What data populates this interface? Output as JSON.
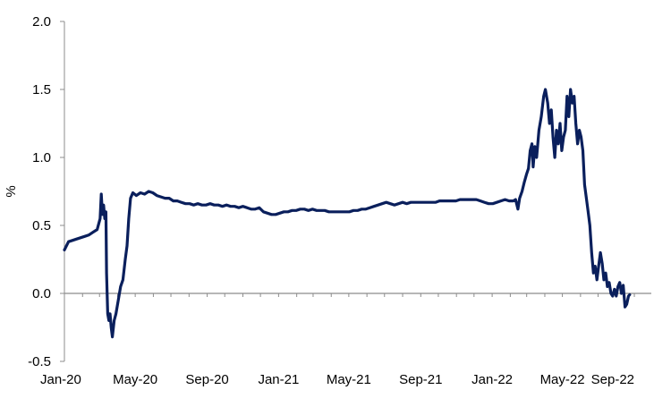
{
  "chart_data": {
    "type": "line",
    "title": "",
    "xlabel": "",
    "ylabel": "%",
    "ylim": [
      -0.5,
      2.0
    ],
    "yticks": [
      "-0.5",
      "0.0",
      "0.5",
      "1.0",
      "1.5",
      "2.0"
    ],
    "xticks": [
      "Jan-20",
      "May-20",
      "Sep-20",
      "Jan-21",
      "May-21",
      "Sep-21",
      "Jan-22",
      "May-22",
      "Sep-22"
    ],
    "xlim": [
      "2020-01-01",
      "2022-09-30"
    ],
    "grid": false,
    "legend": "none",
    "line_color": "#0a1f5c",
    "zero_line_color": "#8c8c8c",
    "series": [
      {
        "points": [
          [
            "2020-01-01",
            0.32
          ],
          [
            "2020-01-08",
            0.38
          ],
          [
            "2020-01-15",
            0.39
          ],
          [
            "2020-01-22",
            0.4
          ],
          [
            "2020-01-29",
            0.41
          ],
          [
            "2020-02-05",
            0.42
          ],
          [
            "2020-02-12",
            0.43
          ],
          [
            "2020-02-19",
            0.45
          ],
          [
            "2020-02-26",
            0.47
          ],
          [
            "2020-03-02",
            0.55
          ],
          [
            "2020-03-04",
            0.73
          ],
          [
            "2020-03-06",
            0.58
          ],
          [
            "2020-03-08",
            0.65
          ],
          [
            "2020-03-10",
            0.55
          ],
          [
            "2020-03-12",
            0.6
          ],
          [
            "2020-03-13",
            0.15
          ],
          [
            "2020-03-15",
            -0.15
          ],
          [
            "2020-03-17",
            -0.2
          ],
          [
            "2020-03-19",
            -0.15
          ],
          [
            "2020-03-21",
            -0.25
          ],
          [
            "2020-03-23",
            -0.32
          ],
          [
            "2020-03-26",
            -0.2
          ],
          [
            "2020-03-29",
            -0.15
          ],
          [
            "2020-04-02",
            -0.05
          ],
          [
            "2020-04-06",
            0.05
          ],
          [
            "2020-04-10",
            0.1
          ],
          [
            "2020-04-14",
            0.25
          ],
          [
            "2020-04-17",
            0.35
          ],
          [
            "2020-04-20",
            0.55
          ],
          [
            "2020-04-23",
            0.7
          ],
          [
            "2020-04-27",
            0.74
          ],
          [
            "2020-05-03",
            0.72
          ],
          [
            "2020-05-10",
            0.74
          ],
          [
            "2020-05-17",
            0.73
          ],
          [
            "2020-05-24",
            0.75
          ],
          [
            "2020-05-31",
            0.74
          ],
          [
            "2020-06-07",
            0.72
          ],
          [
            "2020-06-14",
            0.71
          ],
          [
            "2020-06-21",
            0.7
          ],
          [
            "2020-06-28",
            0.7
          ],
          [
            "2020-07-05",
            0.68
          ],
          [
            "2020-07-12",
            0.68
          ],
          [
            "2020-07-19",
            0.67
          ],
          [
            "2020-07-26",
            0.66
          ],
          [
            "2020-08-02",
            0.66
          ],
          [
            "2020-08-09",
            0.65
          ],
          [
            "2020-08-16",
            0.66
          ],
          [
            "2020-08-23",
            0.65
          ],
          [
            "2020-08-30",
            0.65
          ],
          [
            "2020-09-06",
            0.66
          ],
          [
            "2020-09-13",
            0.65
          ],
          [
            "2020-09-20",
            0.65
          ],
          [
            "2020-09-27",
            0.64
          ],
          [
            "2020-10-04",
            0.65
          ],
          [
            "2020-10-11",
            0.64
          ],
          [
            "2020-10-18",
            0.64
          ],
          [
            "2020-10-25",
            0.63
          ],
          [
            "2020-11-01",
            0.64
          ],
          [
            "2020-11-08",
            0.63
          ],
          [
            "2020-11-15",
            0.62
          ],
          [
            "2020-11-22",
            0.62
          ],
          [
            "2020-11-29",
            0.63
          ],
          [
            "2020-12-06",
            0.6
          ],
          [
            "2020-12-13",
            0.59
          ],
          [
            "2020-12-20",
            0.58
          ],
          [
            "2020-12-27",
            0.58
          ],
          [
            "2021-01-03",
            0.59
          ],
          [
            "2021-01-10",
            0.6
          ],
          [
            "2021-01-17",
            0.6
          ],
          [
            "2021-01-24",
            0.61
          ],
          [
            "2021-01-31",
            0.61
          ],
          [
            "2021-02-07",
            0.62
          ],
          [
            "2021-02-14",
            0.62
          ],
          [
            "2021-02-21",
            0.61
          ],
          [
            "2021-02-28",
            0.62
          ],
          [
            "2021-03-07",
            0.61
          ],
          [
            "2021-03-14",
            0.61
          ],
          [
            "2021-03-21",
            0.61
          ],
          [
            "2021-03-28",
            0.6
          ],
          [
            "2021-04-04",
            0.6
          ],
          [
            "2021-04-11",
            0.6
          ],
          [
            "2021-04-18",
            0.6
          ],
          [
            "2021-04-25",
            0.6
          ],
          [
            "2021-05-02",
            0.6
          ],
          [
            "2021-05-09",
            0.61
          ],
          [
            "2021-05-16",
            0.61
          ],
          [
            "2021-05-23",
            0.62
          ],
          [
            "2021-05-30",
            0.62
          ],
          [
            "2021-06-06",
            0.63
          ],
          [
            "2021-06-13",
            0.64
          ],
          [
            "2021-06-20",
            0.65
          ],
          [
            "2021-06-27",
            0.66
          ],
          [
            "2021-07-04",
            0.67
          ],
          [
            "2021-07-11",
            0.66
          ],
          [
            "2021-07-18",
            0.65
          ],
          [
            "2021-07-25",
            0.66
          ],
          [
            "2021-08-01",
            0.67
          ],
          [
            "2021-08-08",
            0.66
          ],
          [
            "2021-08-15",
            0.67
          ],
          [
            "2021-08-22",
            0.67
          ],
          [
            "2021-08-29",
            0.67
          ],
          [
            "2021-09-05",
            0.67
          ],
          [
            "2021-09-12",
            0.67
          ],
          [
            "2021-09-19",
            0.67
          ],
          [
            "2021-09-26",
            0.67
          ],
          [
            "2021-10-03",
            0.68
          ],
          [
            "2021-10-10",
            0.68
          ],
          [
            "2021-10-17",
            0.68
          ],
          [
            "2021-10-24",
            0.68
          ],
          [
            "2021-10-31",
            0.68
          ],
          [
            "2021-11-07",
            0.69
          ],
          [
            "2021-11-14",
            0.69
          ],
          [
            "2021-11-21",
            0.69
          ],
          [
            "2021-11-28",
            0.69
          ],
          [
            "2021-12-05",
            0.69
          ],
          [
            "2021-12-12",
            0.68
          ],
          [
            "2021-12-19",
            0.67
          ],
          [
            "2021-12-26",
            0.66
          ],
          [
            "2022-01-02",
            0.66
          ],
          [
            "2022-01-09",
            0.67
          ],
          [
            "2022-01-16",
            0.68
          ],
          [
            "2022-01-23",
            0.69
          ],
          [
            "2022-01-30",
            0.68
          ],
          [
            "2022-02-06",
            0.68
          ],
          [
            "2022-02-10",
            0.69
          ],
          [
            "2022-02-14",
            0.62
          ],
          [
            "2022-02-17",
            0.7
          ],
          [
            "2022-02-21",
            0.75
          ],
          [
            "2022-02-25",
            0.82
          ],
          [
            "2022-03-01",
            0.88
          ],
          [
            "2022-03-04",
            0.92
          ],
          [
            "2022-03-07",
            1.05
          ],
          [
            "2022-03-10",
            1.1
          ],
          [
            "2022-03-12",
            0.93
          ],
          [
            "2022-03-15",
            1.08
          ],
          [
            "2022-03-18",
            1.0
          ],
          [
            "2022-03-22",
            1.2
          ],
          [
            "2022-03-26",
            1.3
          ],
          [
            "2022-03-30",
            1.45
          ],
          [
            "2022-04-02",
            1.5
          ],
          [
            "2022-04-06",
            1.4
          ],
          [
            "2022-04-09",
            1.25
          ],
          [
            "2022-04-12",
            1.35
          ],
          [
            "2022-04-15",
            1.15
          ],
          [
            "2022-04-18",
            1.0
          ],
          [
            "2022-04-21",
            1.2
          ],
          [
            "2022-04-24",
            1.1
          ],
          [
            "2022-04-27",
            1.25
          ],
          [
            "2022-04-30",
            1.05
          ],
          [
            "2022-05-03",
            1.15
          ],
          [
            "2022-05-06",
            1.2
          ],
          [
            "2022-05-09",
            1.45
          ],
          [
            "2022-05-12",
            1.3
          ],
          [
            "2022-05-15",
            1.5
          ],
          [
            "2022-05-18",
            1.4
          ],
          [
            "2022-05-21",
            1.45
          ],
          [
            "2022-05-24",
            1.25
          ],
          [
            "2022-05-27",
            1.1
          ],
          [
            "2022-05-30",
            1.2
          ],
          [
            "2022-06-02",
            1.15
          ],
          [
            "2022-06-05",
            1.05
          ],
          [
            "2022-06-08",
            0.8
          ],
          [
            "2022-06-11",
            0.7
          ],
          [
            "2022-06-14",
            0.6
          ],
          [
            "2022-06-17",
            0.5
          ],
          [
            "2022-06-20",
            0.3
          ],
          [
            "2022-06-23",
            0.15
          ],
          [
            "2022-06-26",
            0.2
          ],
          [
            "2022-06-29",
            0.1
          ],
          [
            "2022-07-02",
            0.2
          ],
          [
            "2022-07-05",
            0.3
          ],
          [
            "2022-07-08",
            0.22
          ],
          [
            "2022-07-11",
            0.1
          ],
          [
            "2022-07-14",
            0.15
          ],
          [
            "2022-07-17",
            0.05
          ],
          [
            "2022-07-20",
            0.08
          ],
          [
            "2022-07-23",
            0.0
          ],
          [
            "2022-07-26",
            -0.02
          ],
          [
            "2022-07-29",
            0.03
          ],
          [
            "2022-08-01",
            -0.02
          ],
          [
            "2022-08-04",
            0.05
          ],
          [
            "2022-08-07",
            0.08
          ],
          [
            "2022-08-10",
            0.0
          ],
          [
            "2022-08-13",
            0.06
          ],
          [
            "2022-08-16",
            -0.1
          ],
          [
            "2022-08-19",
            -0.08
          ],
          [
            "2022-08-22",
            -0.02
          ],
          [
            "2022-08-24",
            -0.01
          ]
        ]
      }
    ]
  }
}
